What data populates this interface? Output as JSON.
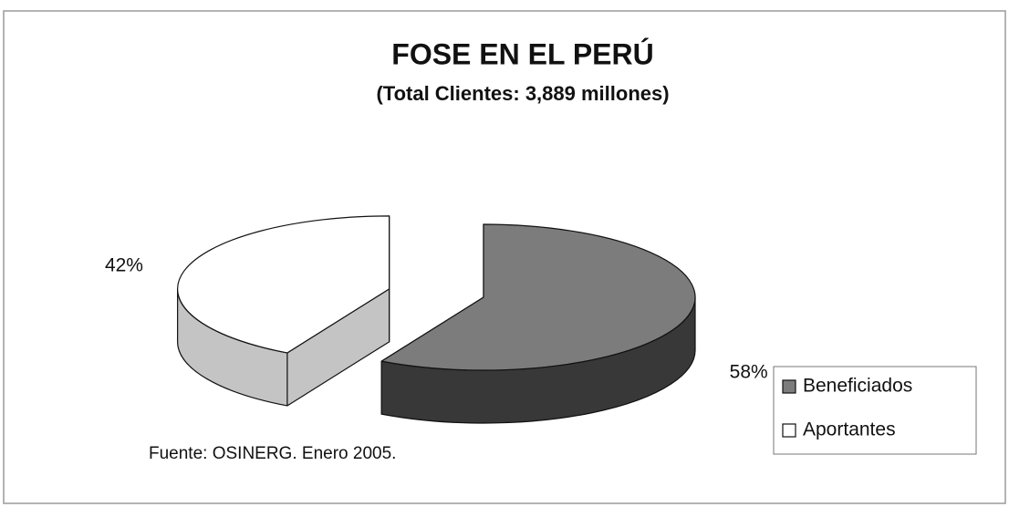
{
  "chart_data": {
    "type": "pie",
    "title": "FOSE EN EL PERÚ",
    "subtitle": "(Total Clientes: 3,889 millones)",
    "categories": [
      "Beneficiados",
      "Aportantes"
    ],
    "values": [
      58,
      42
    ],
    "value_labels": [
      "58%",
      "42%"
    ],
    "colors": [
      "#7c7c7c",
      "#ffffff"
    ],
    "annotation": "Fuente: OSINERG. Enero 2005.",
    "legend": "right"
  }
}
